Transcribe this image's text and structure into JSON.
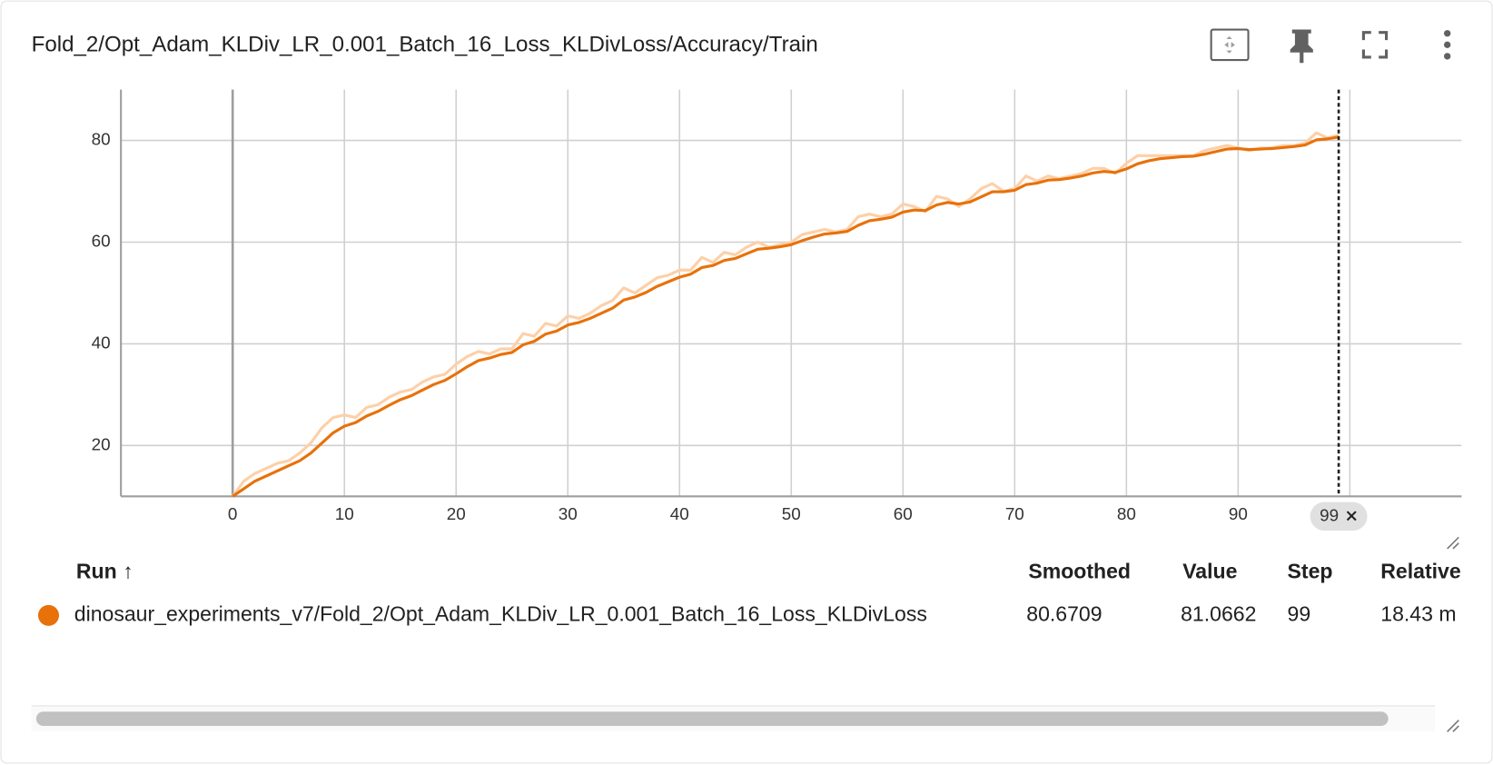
{
  "chart_data": {
    "type": "line",
    "title": "Fold_2/Opt_Adam_KLDiv_LR_0.001_Batch_16_Loss_KLDivLoss/Accuracy/Train",
    "x": [
      0,
      1,
      2,
      3,
      4,
      5,
      6,
      7,
      8,
      9,
      10,
      11,
      12,
      13,
      14,
      15,
      16,
      17,
      18,
      19,
      20,
      21,
      22,
      23,
      24,
      25,
      26,
      27,
      28,
      29,
      30,
      31,
      32,
      33,
      34,
      35,
      36,
      37,
      38,
      39,
      40,
      41,
      42,
      43,
      44,
      45,
      46,
      47,
      48,
      49,
      50,
      51,
      52,
      53,
      54,
      55,
      56,
      57,
      58,
      59,
      60,
      61,
      62,
      63,
      64,
      65,
      66,
      67,
      68,
      69,
      70,
      71,
      72,
      73,
      74,
      75,
      76,
      77,
      78,
      79,
      80,
      81,
      82,
      83,
      84,
      85,
      86,
      87,
      88,
      89,
      90,
      91,
      92,
      93,
      94,
      95,
      96,
      97,
      98,
      99
    ],
    "series": [
      {
        "color": "#fdd0a8",
        "values": [
          10,
          13,
          14.5,
          15.5,
          16.5,
          17,
          18.5,
          20.5,
          23.5,
          25.5,
          26,
          25.5,
          27.5,
          28,
          29.5,
          30.5,
          31,
          32.5,
          33.5,
          34,
          36,
          37.5,
          38.5,
          38,
          39,
          39,
          42,
          41.5,
          44,
          43.5,
          45.5,
          45,
          46,
          47.5,
          48.5,
          51,
          50,
          51.5,
          53,
          53.5,
          54.5,
          54.5,
          57,
          56,
          58,
          57.5,
          59,
          60,
          59,
          59.5,
          60,
          61.5,
          62,
          62.5,
          62,
          62.5,
          65,
          65.5,
          65,
          65.5,
          67.5,
          67,
          66,
          69,
          68.5,
          67,
          68.5,
          70.5,
          71.5,
          70,
          70.5,
          73,
          72,
          73,
          72.5,
          73,
          73.5,
          74.5,
          74.5,
          73.5,
          75.5,
          77,
          77,
          77,
          77,
          77,
          77,
          78,
          78.5,
          79,
          78.5,
          78,
          78.5,
          78.5,
          79,
          79,
          79.5,
          81.5,
          80.5,
          81.0662
        ]
      },
      {
        "color": "#e8710a",
        "values": [
          10,
          11.5,
          13,
          14,
          15,
          16,
          17,
          18.5,
          20.5,
          22.5,
          23.8,
          24.5,
          25.8,
          26.7,
          27.9,
          29,
          29.8,
          30.9,
          32,
          32.8,
          34.1,
          35.5,
          36.7,
          37.2,
          37.9,
          38.3,
          39.8,
          40.5,
          41.9,
          42.5,
          43.7,
          44.2,
          45,
          46,
          47,
          48.6,
          49.2,
          50.1,
          51.3,
          52.2,
          53.1,
          53.7,
          55,
          55.4,
          56.4,
          56.8,
          57.7,
          58.6,
          58.8,
          59.1,
          59.5,
          60.3,
          61,
          61.6,
          61.8,
          62.1,
          63.3,
          64.2,
          64.5,
          64.9,
          65.9,
          66.3,
          66.2,
          67.3,
          67.8,
          67.5,
          67.9,
          68.9,
          69.9,
          69.9,
          70.2,
          71.3,
          71.6,
          72.2,
          72.3,
          72.6,
          73,
          73.6,
          73.9,
          73.7,
          74.4,
          75.4,
          76,
          76.4,
          76.6,
          76.8,
          76.9,
          77.3,
          77.8,
          78.3,
          78.4,
          78.2,
          78.3,
          78.4,
          78.6,
          78.8,
          79.1,
          80.1,
          80.3,
          80.6709
        ]
      }
    ],
    "xlim": [
      -10,
      110
    ],
    "xticks": [
      0,
      10,
      20,
      30,
      40,
      50,
      60,
      70,
      80,
      90,
      100
    ],
    "ylim": [
      10,
      90
    ],
    "yticks": [
      20,
      40,
      60,
      80
    ],
    "grid": true,
    "hover_step": 99
  },
  "run_table": {
    "headers": [
      "Run ↑",
      "Smoothed",
      "Value",
      "Step",
      "Relative"
    ],
    "rows": [
      [
        "dinosaur_experiments_v7/Fold_2/Opt_Adam_KLDiv_LR_0.001_Batch_16_Loss_KLDivLoss",
        80.6709,
        81.0662,
        99,
        "18.43 m"
      ]
    ],
    "run_color": "#e8710a"
  }
}
